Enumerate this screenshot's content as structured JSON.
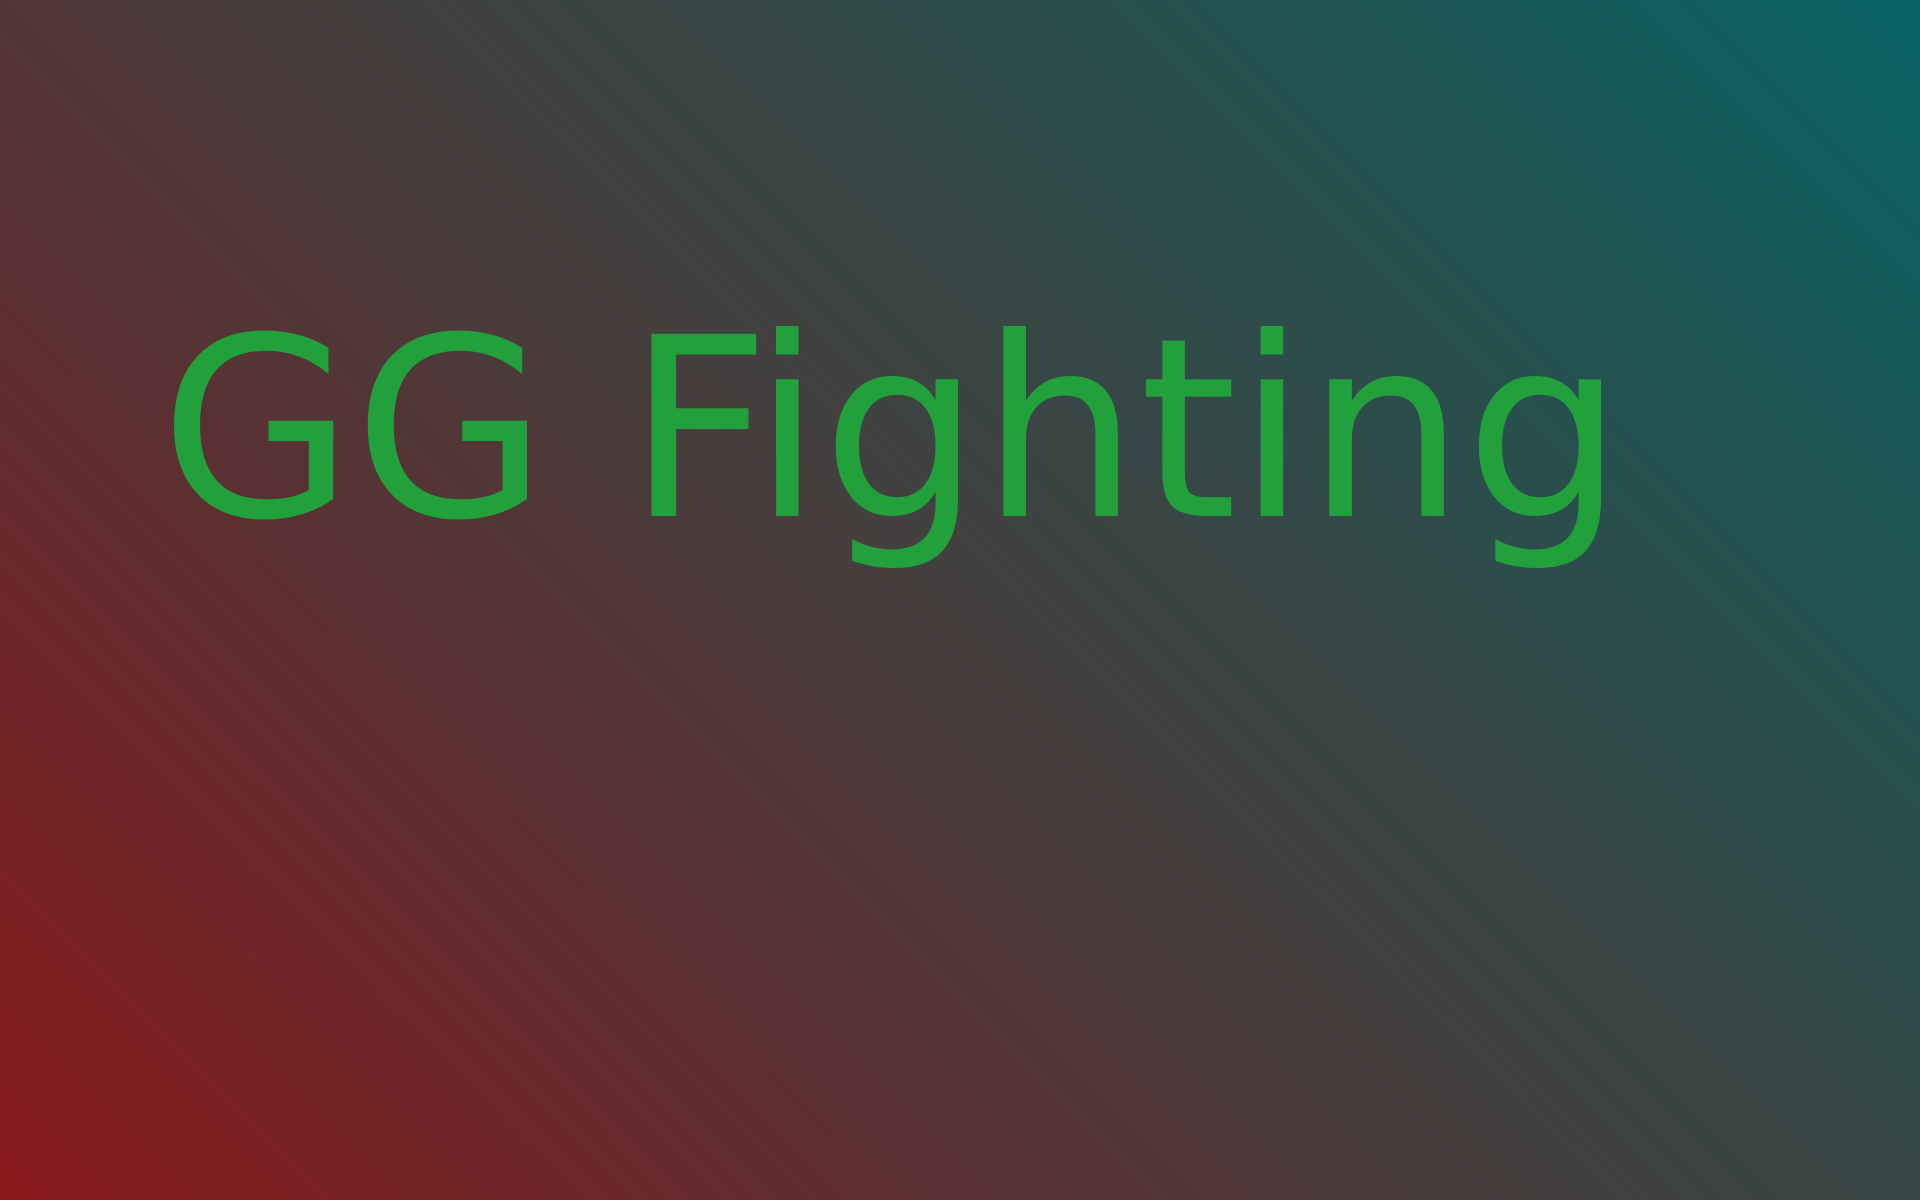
{
  "title": "GG Fighting",
  "colors": {
    "title_text": "#21a03c",
    "gradient_bottom_left": "#8a1a1c",
    "gradient_top_right": "#076262"
  }
}
